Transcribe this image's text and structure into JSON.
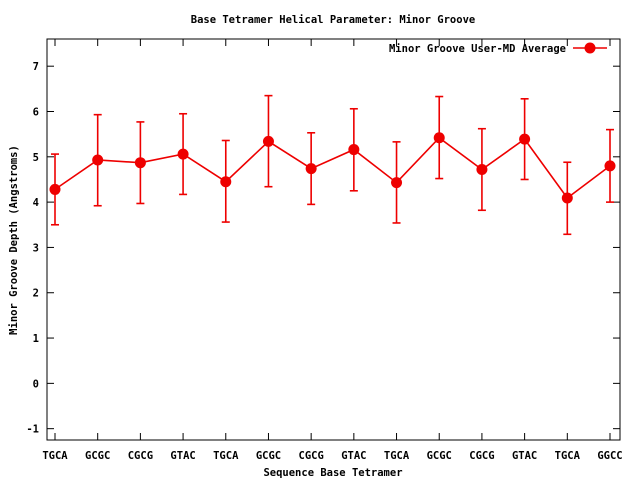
{
  "chart_data": {
    "type": "line",
    "title": "Base Tetramer Helical Parameter: Minor Groove",
    "xlabel": "Sequence Base Tetramer",
    "ylabel": "Minor Groove Depth (Angstroms)",
    "ylim": [
      -1.25,
      7.6
    ],
    "yticks": [
      "-1",
      "0",
      "1",
      "2",
      "3",
      "4",
      "5",
      "6",
      "7"
    ],
    "categories": [
      "TGCA",
      "GCGC",
      "CGCG",
      "GTAC",
      "TGCA",
      "GCGC",
      "CGCG",
      "GTAC",
      "TGCA",
      "GCGC",
      "CGCG",
      "GTAC",
      "TGCA",
      "GGCC"
    ],
    "grid": false,
    "legend_position": "top-right",
    "series": [
      {
        "name": "Minor Groove User-MD Average",
        "color": "#ee0000",
        "values": [
          4.28,
          4.93,
          4.87,
          5.06,
          4.45,
          5.34,
          4.74,
          5.16,
          4.43,
          5.42,
          4.72,
          5.39,
          4.09,
          4.8
        ],
        "error_low": [
          3.5,
          3.92,
          3.97,
          4.17,
          3.56,
          4.34,
          3.95,
          4.25,
          3.54,
          4.52,
          3.82,
          4.5,
          3.29,
          4.0
        ],
        "error_high": [
          5.06,
          5.93,
          5.77,
          5.95,
          5.36,
          6.35,
          5.53,
          6.06,
          5.33,
          6.33,
          5.62,
          6.28,
          4.88,
          5.6
        ]
      }
    ]
  }
}
